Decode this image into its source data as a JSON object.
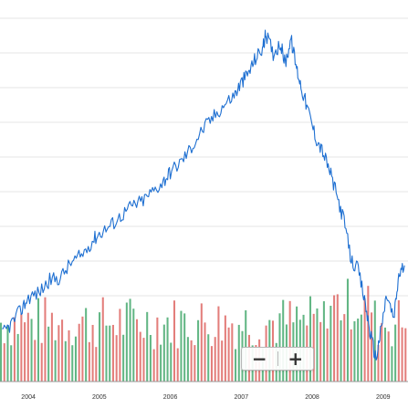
{
  "chart_data": {
    "type": "line",
    "title": "",
    "xlabel": "",
    "ylabel": "",
    "x_tick_labels": [
      "2004",
      "2005",
      "2006",
      "2007",
      "2008",
      "2009"
    ],
    "x_range": [
      2003.6,
      2009.35
    ],
    "grid": true,
    "price_series": {
      "color": "#1e6fd1",
      "points": [
        [
          2003.63,
          18
        ],
        [
          2003.75,
          22
        ],
        [
          2003.9,
          28
        ],
        [
          2004.0,
          33
        ],
        [
          2004.15,
          35
        ],
        [
          2004.3,
          40
        ],
        [
          2004.45,
          41
        ],
        [
          2004.6,
          47
        ],
        [
          2004.75,
          50
        ],
        [
          2004.9,
          56
        ],
        [
          2005.0,
          59
        ],
        [
          2005.15,
          62
        ],
        [
          2005.3,
          66
        ],
        [
          2005.45,
          70
        ],
        [
          2005.6,
          72
        ],
        [
          2005.75,
          76
        ],
        [
          2005.9,
          80
        ],
        [
          2006.0,
          84
        ],
        [
          2006.15,
          88
        ],
        [
          2006.3,
          94
        ],
        [
          2006.45,
          101
        ],
        [
          2006.6,
          106
        ],
        [
          2006.75,
          111
        ],
        [
          2006.9,
          115
        ],
        [
          2007.0,
          120
        ],
        [
          2007.1,
          124
        ],
        [
          2007.2,
          130
        ],
        [
          2007.3,
          134
        ],
        [
          2007.35,
          140
        ],
        [
          2007.45,
          132
        ],
        [
          2007.55,
          136
        ],
        [
          2007.62,
          128
        ],
        [
          2007.7,
          138
        ],
        [
          2007.78,
          126
        ],
        [
          2007.85,
          118
        ],
        [
          2007.95,
          108
        ],
        [
          2008.05,
          98
        ],
        [
          2008.15,
          92
        ],
        [
          2008.25,
          84
        ],
        [
          2008.35,
          74
        ],
        [
          2008.45,
          64
        ],
        [
          2008.55,
          48
        ],
        [
          2008.65,
          44
        ],
        [
          2008.75,
          30
        ],
        [
          2008.82,
          18
        ],
        [
          2008.9,
          8
        ],
        [
          2008.97,
          20
        ],
        [
          2009.05,
          34
        ],
        [
          2009.15,
          24
        ],
        [
          2009.22,
          42
        ],
        [
          2009.3,
          46
        ]
      ],
      "y_range": [
        0,
        150
      ]
    },
    "volume_series": {
      "up_color": "#2e9e5b",
      "down_color": "#d9534f",
      "bar_count": 120,
      "y_range": [
        0,
        100
      ]
    }
  },
  "zoom_controls": {
    "zoom_out_label": "−",
    "zoom_in_label": "+"
  },
  "colors": {
    "grid": "#e6e6e6",
    "axis": "#999999"
  }
}
